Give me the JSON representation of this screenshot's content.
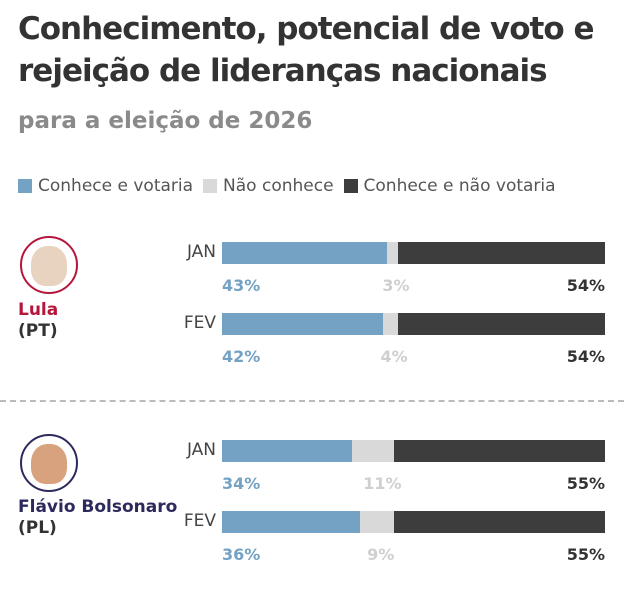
{
  "title": "Conhecimento, potencial de voto e rejeição de lideranças nacionais",
  "subtitle": "para a eleição de 2026",
  "colors": {
    "votaria": "#73a2c4",
    "nao_conhece": "#d9d9d9",
    "nao_votaria": "#3d3d3d",
    "lula": "#b5163b",
    "flavio": "#2c2a5c"
  },
  "chart_data": {
    "type": "bar",
    "stacked": true,
    "orientation": "horizontal",
    "title": "Conhecimento, potencial de voto e rejeição de lideranças nacionais",
    "subtitle": "para a eleição de 2026",
    "legend": [
      "Conhece e votaria",
      "Não conhece",
      "Conhece e não votaria"
    ],
    "legend_placement": "top",
    "groups": [
      {
        "name": "Lula",
        "party": "(PT)",
        "rows": [
          {
            "month": "JAN",
            "values": [
              43,
              3,
              54
            ],
            "labels": [
              "43%",
              "3%",
              "54%"
            ]
          },
          {
            "month": "FEV",
            "values": [
              42,
              4,
              54
            ],
            "labels": [
              "42%",
              "4%",
              "54%"
            ]
          }
        ]
      },
      {
        "name": "Flávio Bolsonaro",
        "party": "(PL)",
        "rows": [
          {
            "month": "JAN",
            "values": [
              34,
              11,
              55
            ],
            "labels": [
              "34%",
              "11%",
              "55%"
            ]
          },
          {
            "month": "FEV",
            "values": [
              36,
              9,
              55
            ],
            "labels": [
              "36%",
              "9%",
              "55%"
            ]
          }
        ]
      }
    ]
  }
}
